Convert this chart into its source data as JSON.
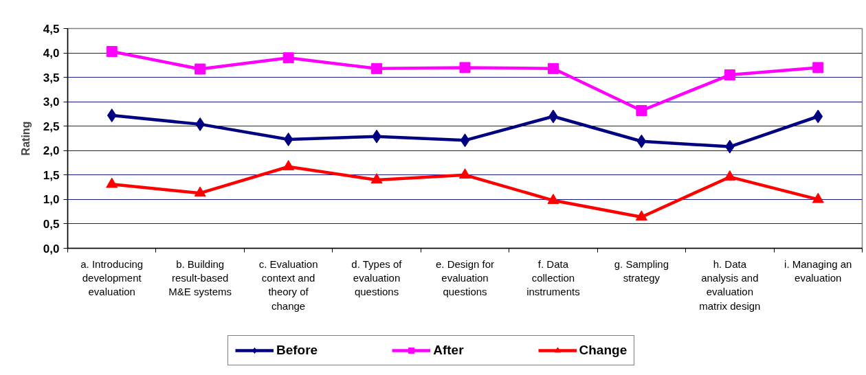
{
  "chart_data": {
    "type": "line",
    "ylabel": "Rating",
    "categories": [
      "a. Introducing development evaluation",
      "b. Building result-based M&E systems",
      "c. Evaluation context and theory of change",
      "d. Types of evaluation questions",
      "e. Design for evaluation questions",
      "f. Data collection instruments",
      "g. Sampling strategy",
      "h. Data analysis and evaluation matrix design",
      "i. Managing an evaluation"
    ],
    "series": [
      {
        "name": "Before",
        "color": "#000080",
        "marker": "diamond",
        "values": [
          2.72,
          2.54,
          2.23,
          2.29,
          2.21,
          2.7,
          2.19,
          2.08,
          2.7
        ]
      },
      {
        "name": "After",
        "color": "#ff00ff",
        "marker": "square",
        "values": [
          4.03,
          3.67,
          3.9,
          3.68,
          3.7,
          3.68,
          2.82,
          3.55,
          3.7
        ]
      },
      {
        "name": "Change",
        "color": "#ff0000",
        "marker": "triangle",
        "values": [
          1.31,
          1.13,
          1.67,
          1.4,
          1.5,
          0.98,
          0.64,
          1.46,
          1.0
        ]
      }
    ],
    "ylim": [
      0,
      4.5
    ],
    "yticks": [
      {
        "value": 0,
        "label": "0,0"
      },
      {
        "value": 0.5,
        "label": "0,5"
      },
      {
        "value": 1,
        "label": "1,0"
      },
      {
        "value": 1.5,
        "label": "1,5"
      },
      {
        "value": 2,
        "label": "2,0"
      },
      {
        "value": 2.5,
        "label": "2,5"
      },
      {
        "value": 3,
        "label": "3,0"
      },
      {
        "value": 3.5,
        "label": "3,5"
      },
      {
        "value": 4,
        "label": "4,0"
      },
      {
        "value": 4.5,
        "label": "4,5"
      }
    ],
    "grid": "y",
    "legend": "bottom",
    "line_style": "solid"
  }
}
